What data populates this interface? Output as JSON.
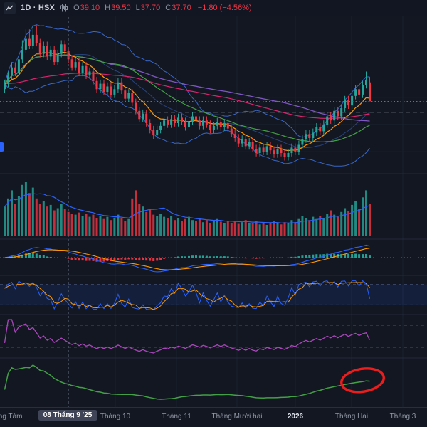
{
  "header": {
    "interval_market": "1D · HSX",
    "ohlc_labels": [
      "O",
      "H",
      "L",
      "C"
    ],
    "ohlc_values": [
      "39.10",
      "39.50",
      "37.70",
      "37.70"
    ],
    "change": "−1.80 (−4.56%)",
    "value_color": "#f23645",
    "label_color": "#868d9b"
  },
  "axis": {
    "labels": [
      {
        "text": "Tháng Tám",
        "x": 6,
        "strong": false
      },
      {
        "text": "Tháng 10",
        "x": 162,
        "strong": false
      },
      {
        "text": "Tháng 11",
        "x": 248,
        "strong": false
      },
      {
        "text": "Tháng Mười hai",
        "x": 333,
        "strong": false
      },
      {
        "text": "2026",
        "x": 415,
        "strong": true
      },
      {
        "text": "Tháng Hai",
        "x": 494,
        "strong": false
      },
      {
        "text": "Tháng 3",
        "x": 566,
        "strong": false
      }
    ],
    "crosshair_label": {
      "text": "08 Tháng 9 '25",
      "x": 95
    }
  },
  "chart_data": {
    "type": "candlestick",
    "symbol_interval": "1D · HSX",
    "last_bar": {
      "open": 39.1,
      "high": 39.5,
      "low": 37.7,
      "close": 37.7,
      "change": -1.8,
      "change_pct": -4.56
    },
    "ylim": [
      32.8,
      43.8
    ],
    "legend_position": "top-left",
    "grid": true,
    "panels": [
      "price",
      "volume",
      "macd",
      "stochastic",
      "rsi",
      "smoothed-oscillator"
    ],
    "indicators": {
      "bollinger": {
        "period": 20,
        "mult": 2
      },
      "ema_fast": 10,
      "sma_mid": 30,
      "sma_long": 80,
      "ema_long": 90,
      "volume_ma": 10,
      "macd": [
        12,
        26,
        9
      ],
      "stochastic": [
        9,
        3
      ],
      "rsi": 14,
      "green_line": "sma8(rsi20)"
    },
    "candles": [
      [
        38.6,
        39.3,
        38.35,
        39.0
      ],
      [
        39.0,
        39.9,
        38.75,
        39.6
      ],
      [
        39.6,
        40.5,
        39.35,
        40.2
      ],
      [
        40.2,
        40.5,
        39.55,
        39.8
      ],
      [
        39.8,
        41.1,
        39.55,
        40.8
      ],
      [
        40.8,
        42.2,
        40.55,
        41.5
      ],
      [
        41.5,
        43.0,
        41.25,
        42.3
      ],
      [
        42.3,
        43.0,
        41.55,
        41.8
      ],
      [
        41.8,
        43.3,
        41.55,
        42.6
      ],
      [
        42.6,
        43.3,
        41.75,
        42.0
      ],
      [
        42.0,
        42.3,
        40.95,
        41.2
      ],
      [
        41.2,
        42.1,
        40.95,
        41.8
      ],
      [
        41.8,
        42.1,
        40.75,
        41.0
      ],
      [
        41.0,
        41.8,
        40.75,
        41.5
      ],
      [
        41.5,
        41.8,
        40.35,
        40.6
      ],
      [
        40.6,
        41.5,
        40.35,
        41.2
      ],
      [
        41.2,
        42.2,
        40.95,
        41.9
      ],
      [
        41.9,
        42.2,
        41.15,
        41.4
      ],
      [
        41.4,
        41.7,
        40.55,
        40.8
      ],
      [
        40.8,
        41.1,
        39.95,
        40.2
      ],
      [
        40.2,
        40.9,
        39.95,
        40.6
      ],
      [
        40.6,
        40.9,
        39.55,
        39.8
      ],
      [
        39.8,
        40.6,
        39.55,
        40.3
      ],
      [
        40.3,
        40.6,
        39.35,
        39.6
      ],
      [
        39.6,
        40.2,
        39.35,
        39.9
      ],
      [
        39.9,
        40.2,
        38.95,
        39.2
      ],
      [
        39.2,
        39.5,
        38.35,
        38.6
      ],
      [
        38.6,
        39.3,
        38.35,
        39.0
      ],
      [
        39.0,
        39.3,
        38.15,
        38.4
      ],
      [
        38.4,
        39.1,
        38.15,
        38.8
      ],
      [
        38.8,
        39.1,
        37.95,
        38.2
      ],
      [
        38.2,
        38.9,
        37.95,
        38.6
      ],
      [
        38.6,
        39.4,
        38.35,
        39.1
      ],
      [
        39.1,
        39.4,
        38.25,
        38.5
      ],
      [
        38.5,
        38.8,
        37.65,
        37.9
      ],
      [
        37.9,
        38.6,
        37.65,
        38.3
      ],
      [
        38.3,
        38.6,
        37.35,
        37.6
      ],
      [
        37.6,
        37.9,
        36.75,
        37.0
      ],
      [
        37.0,
        37.3,
        36.15,
        36.4
      ],
      [
        36.4,
        37.1,
        36.15,
        36.8
      ],
      [
        36.8,
        37.1,
        35.85,
        36.1
      ],
      [
        36.1,
        36.4,
        35.35,
        35.6
      ],
      [
        35.6,
        35.9,
        34.95,
        35.2
      ],
      [
        35.2,
        35.9,
        34.95,
        35.6
      ],
      [
        35.6,
        36.2,
        35.35,
        35.9
      ],
      [
        35.9,
        36.6,
        35.65,
        36.3
      ],
      [
        36.3,
        36.6,
        35.75,
        36.0
      ],
      [
        36.0,
        36.7,
        35.75,
        36.4
      ],
      [
        36.4,
        36.7,
        35.85,
        36.1
      ],
      [
        36.1,
        36.8,
        35.85,
        36.5
      ],
      [
        36.5,
        36.8,
        35.95,
        36.2
      ],
      [
        36.2,
        36.5,
        35.55,
        35.8
      ],
      [
        35.8,
        36.5,
        35.55,
        36.2
      ],
      [
        36.2,
        36.9,
        35.95,
        36.6
      ],
      [
        36.6,
        36.9,
        36.05,
        36.3
      ],
      [
        36.3,
        36.6,
        35.65,
        35.9
      ],
      [
        35.9,
        36.6,
        35.65,
        36.3
      ],
      [
        36.3,
        36.6,
        35.75,
        36.0
      ],
      [
        36.0,
        36.3,
        35.35,
        35.6
      ],
      [
        35.6,
        36.2,
        35.35,
        35.9
      ],
      [
        35.9,
        36.5,
        35.65,
        36.2
      ],
      [
        36.2,
        36.5,
        35.55,
        35.8
      ],
      [
        35.8,
        36.4,
        35.55,
        36.1
      ],
      [
        36.1,
        36.4,
        35.45,
        35.7
      ],
      [
        35.7,
        36.0,
        35.05,
        35.3
      ],
      [
        35.3,
        35.6,
        34.75,
        35.0
      ],
      [
        35.0,
        35.3,
        34.35,
        34.6
      ],
      [
        34.6,
        35.2,
        34.35,
        34.9
      ],
      [
        34.9,
        35.2,
        34.15,
        34.4
      ],
      [
        34.4,
        35.0,
        34.15,
        34.7
      ],
      [
        34.7,
        35.0,
        33.95,
        34.2
      ],
      [
        34.2,
        34.5,
        33.65,
        33.9
      ],
      [
        33.9,
        34.6,
        33.65,
        34.3
      ],
      [
        34.3,
        34.6,
        33.75,
        34.0
      ],
      [
        34.0,
        34.7,
        33.75,
        34.4
      ],
      [
        34.4,
        34.7,
        33.85,
        34.1
      ],
      [
        34.1,
        34.4,
        33.55,
        33.8
      ],
      [
        33.8,
        34.5,
        33.55,
        34.2
      ],
      [
        34.2,
        34.5,
        33.65,
        33.9
      ],
      [
        33.9,
        34.2,
        33.35,
        33.6
      ],
      [
        33.6,
        34.2,
        33.35,
        33.9
      ],
      [
        33.9,
        34.6,
        33.65,
        34.3
      ],
      [
        34.3,
        34.6,
        33.75,
        34.0
      ],
      [
        34.0,
        34.8,
        33.75,
        34.5
      ],
      [
        34.5,
        35.2,
        34.25,
        34.9
      ],
      [
        34.9,
        35.6,
        34.65,
        35.3
      ],
      [
        35.3,
        35.6,
        34.75,
        35.0
      ],
      [
        35.0,
        35.7,
        34.75,
        35.4
      ],
      [
        35.4,
        36.1,
        35.15,
        35.8
      ],
      [
        35.8,
        36.1,
        35.25,
        35.5
      ],
      [
        35.5,
        36.3,
        35.25,
        36.0
      ],
      [
        36.0,
        36.9,
        35.75,
        36.6
      ],
      [
        36.6,
        36.9,
        36.05,
        36.3
      ],
      [
        36.3,
        37.3,
        36.05,
        37.0
      ],
      [
        37.0,
        37.3,
        36.35,
        36.6
      ],
      [
        36.6,
        37.5,
        36.35,
        37.2
      ],
      [
        37.2,
        38.1,
        36.95,
        37.8
      ],
      [
        37.8,
        38.1,
        37.15,
        37.4
      ],
      [
        37.4,
        38.4,
        37.15,
        38.1
      ],
      [
        38.1,
        38.9,
        37.85,
        38.6
      ],
      [
        38.6,
        38.9,
        37.95,
        38.2
      ],
      [
        38.2,
        39.2,
        37.95,
        38.9
      ],
      [
        38.9,
        39.9,
        38.65,
        39.3
      ],
      [
        39.1,
        39.5,
        37.7,
        37.7
      ]
    ],
    "volumes": [
      55,
      70,
      85,
      60,
      75,
      95,
      100,
      80,
      90,
      70,
      60,
      65,
      55,
      58,
      48,
      52,
      60,
      50,
      45,
      42,
      40,
      44,
      38,
      42,
      36,
      40,
      34,
      38,
      32,
      36,
      30,
      34,
      40,
      33,
      28,
      32,
      70,
      85,
      60,
      55,
      45,
      50,
      40,
      38,
      42,
      36,
      34,
      38,
      30,
      34,
      28,
      32,
      36,
      30,
      28,
      32,
      26,
      30,
      25,
      28,
      32,
      27,
      25,
      29,
      24,
      28,
      23,
      26,
      30,
      25,
      25,
      28,
      22,
      26,
      21,
      25,
      28,
      24,
      22,
      26,
      25,
      30,
      26,
      32,
      38,
      34,
      30,
      36,
      32,
      38,
      34,
      42,
      48,
      40,
      36,
      45,
      52,
      46,
      58,
      65,
      50,
      72,
      85,
      60
    ],
    "price_lines": [
      {
        "price": 37.7,
        "color": "#f23645",
        "style": "dotted"
      },
      {
        "price": 36.9,
        "color": "#8b8f9b",
        "style": "dashed"
      }
    ],
    "crosshair": {
      "index": 18
    },
    "annotation": {
      "type": "ellipse",
      "panel": "green",
      "index": 101,
      "color": "#ee1d1d"
    },
    "colors": {
      "up": "#26a69a",
      "down": "#f23645",
      "bb": "#3e6fd8",
      "ema_fast": "#ff9800",
      "ma_mid": "#43a047",
      "ma_long": "#7e57c2",
      "ma_long2": "#d6246e",
      "vol_ma": "#2962ff",
      "macd": "#2962ff",
      "macd_signal": "#ff9800",
      "stoch_k": "#2962ff",
      "stoch_d": "#ff9800",
      "rsi": "#ab47bc",
      "green_line": "#43a047",
      "grid": "#1b2130",
      "separator": "#242a3a",
      "crosshair": "#596070"
    }
  }
}
